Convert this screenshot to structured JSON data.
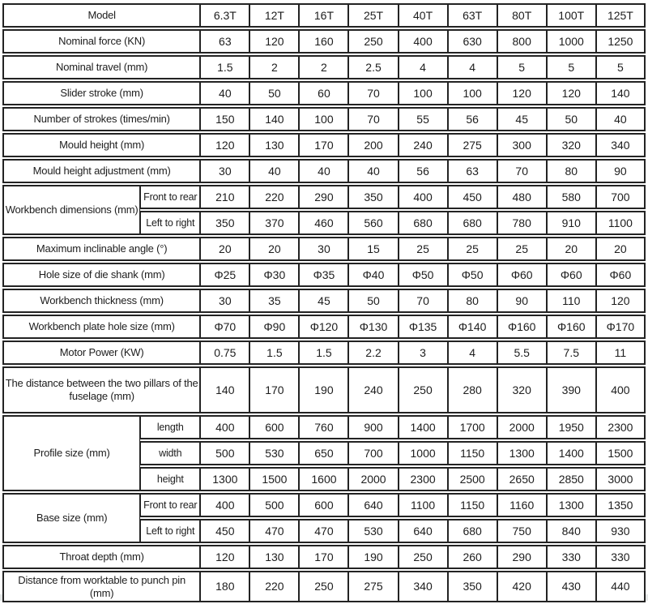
{
  "colors": {
    "border": "#232323",
    "text": "#1d1d1d",
    "background": "#ffffff",
    "bottom_strip": "#e6e9e9"
  },
  "chart_data": {
    "type": "table",
    "header_label": "Model",
    "columns": [
      "6.3T",
      "12T",
      "16T",
      "25T",
      "40T",
      "63T",
      "80T",
      "100T",
      "125T"
    ],
    "rows": [
      {
        "label": "Nominal force (KN)",
        "values": [
          "63",
          "120",
          "160",
          "250",
          "400",
          "630",
          "800",
          "1000",
          "1250"
        ]
      },
      {
        "label": "Nominal travel (mm)",
        "values": [
          "1.5",
          "2",
          "2",
          "2.5",
          "4",
          "4",
          "5",
          "5",
          "5"
        ]
      },
      {
        "label": "Slider stroke (mm)",
        "values": [
          "40",
          "50",
          "60",
          "70",
          "100",
          "100",
          "120",
          "120",
          "140"
        ]
      },
      {
        "label": "Number of strokes (times/min)",
        "values": [
          "150",
          "140",
          "100",
          "70",
          "55",
          "56",
          "45",
          "50",
          "40"
        ]
      },
      {
        "label": "Mould height (mm)",
        "values": [
          "120",
          "130",
          "170",
          "200",
          "240",
          "275",
          "300",
          "320",
          "340"
        ]
      },
      {
        "label": "Mould height adjustment (mm)",
        "values": [
          "30",
          "40",
          "40",
          "40",
          "56",
          "63",
          "70",
          "80",
          "90"
        ]
      },
      {
        "group": "Workbench dimensions (mm)",
        "rows": [
          {
            "label": "Front to rear",
            "values": [
              "210",
              "220",
              "290",
              "350",
              "400",
              "450",
              "480",
              "580",
              "700"
            ]
          },
          {
            "label": "Left to right",
            "values": [
              "350",
              "370",
              "460",
              "560",
              "680",
              "680",
              "780",
              "910",
              "1100"
            ]
          }
        ]
      },
      {
        "label": "Maximum inclinable angle (°)",
        "values": [
          "20",
          "20",
          "30",
          "15",
          "25",
          "25",
          "25",
          "20",
          "20"
        ]
      },
      {
        "label": "Hole size of die shank (mm)",
        "values": [
          "Φ25",
          "Φ30",
          "Φ35",
          "Φ40",
          "Φ50",
          "Φ50",
          "Φ60",
          "Φ60",
          "Φ60"
        ]
      },
      {
        "label": "Workbench thickness (mm)",
        "values": [
          "30",
          "35",
          "45",
          "50",
          "70",
          "80",
          "90",
          "110",
          "120"
        ]
      },
      {
        "label": "Workbench plate hole size (mm)",
        "values": [
          "Φ70",
          "Φ90",
          "Φ120",
          "Φ130",
          "Φ135",
          "Φ140",
          "Φ160",
          "Φ160",
          "Φ170"
        ]
      },
      {
        "label": "Motor Power (KW)",
        "values": [
          "0.75",
          "1.5",
          "1.5",
          "2.2",
          "3",
          "4",
          "5.5",
          "7.5",
          "11"
        ]
      },
      {
        "label": "The distance between the two pillars of the fuselage (mm)",
        "tall": true,
        "values": [
          "140",
          "170",
          "190",
          "240",
          "250",
          "280",
          "320",
          "390",
          "400"
        ]
      },
      {
        "group": "Profile size (mm)",
        "rows": [
          {
            "label": "length",
            "values": [
              "400",
              "600",
              "760",
              "900",
              "1400",
              "1700",
              "2000",
              "1950",
              "2300"
            ]
          },
          {
            "label": "width",
            "values": [
              "500",
              "530",
              "650",
              "700",
              "1000",
              "1150",
              "1300",
              "1400",
              "1500"
            ]
          },
          {
            "label": "height",
            "values": [
              "1300",
              "1500",
              "1600",
              "2000",
              "2300",
              "2500",
              "2650",
              "2850",
              "3000"
            ]
          }
        ]
      },
      {
        "group": "Base size (mm)",
        "rows": [
          {
            "label": "Front to rear",
            "values": [
              "400",
              "500",
              "600",
              "640",
              "1100",
              "1150",
              "1160",
              "1300",
              "1350"
            ]
          },
          {
            "label": "Left to right",
            "values": [
              "450",
              "470",
              "470",
              "530",
              "640",
              "680",
              "750",
              "840",
              "930"
            ]
          }
        ]
      },
      {
        "label": "Throat depth (mm)",
        "values": [
          "120",
          "130",
          "170",
          "190",
          "250",
          "260",
          "290",
          "330",
          "330"
        ]
      },
      {
        "label": "Distance from worktable to punch pin (mm)",
        "values": [
          "180",
          "220",
          "250",
          "275",
          "340",
          "350",
          "420",
          "430",
          "440"
        ]
      }
    ]
  }
}
